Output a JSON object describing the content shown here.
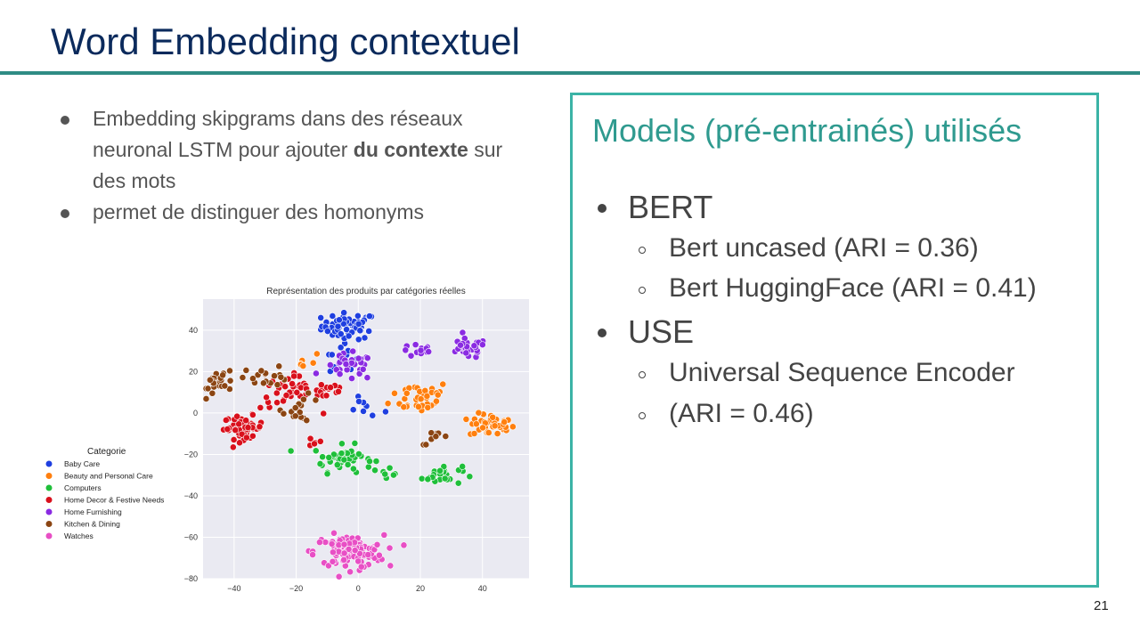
{
  "slide": {
    "title": "Word Embedding contextuel",
    "page_number": "21"
  },
  "left": {
    "bullets": [
      {
        "before": "Embedding skipgrams dans des réseaux neuronal LSTM pour ajouter ",
        "bold": "du contexte",
        "after": " sur des mots"
      },
      {
        "before": "permet de distinguer des homonyms",
        "bold": "",
        "after": ""
      }
    ]
  },
  "panel": {
    "title": "Models (pré-entrainés)  utilisés",
    "items": [
      {
        "label": "BERT",
        "subitems": [
          "Bert uncased  (ARI = 0.36)",
          "Bert HuggingFace (ARI = 0.41)"
        ]
      },
      {
        "label": "USE",
        "subitems": [
          "Universal Sequence Encoder",
          "(ARI = 0.46)"
        ]
      }
    ]
  },
  "chart_data": {
    "type": "scatter",
    "title": "Représentation des produits par catégories réelles",
    "xlabel": "",
    "ylabel": "",
    "xlim": [
      -50,
      55
    ],
    "ylim": [
      -80,
      55
    ],
    "xticks": [
      -40,
      -20,
      0,
      20,
      40
    ],
    "yticks": [
      40,
      20,
      0,
      -20,
      -40,
      -60,
      -80
    ],
    "grid": true,
    "legend": {
      "title": "Categorie",
      "placement": "left"
    },
    "series": [
      {
        "name": "Baby Care",
        "color": "#1f3fe0",
        "clusters": [
          {
            "cx": -3,
            "cy": 42,
            "sx": 5.5,
            "sy": 4,
            "n": 60
          },
          {
            "cx": -6,
            "cy": 25,
            "sx": 4,
            "sy": 5,
            "n": 12
          },
          {
            "cx": 2,
            "cy": 2,
            "sx": 4,
            "sy": 3,
            "n": 8
          }
        ]
      },
      {
        "name": "Beauty and Personal Care",
        "color": "#ff7f0e",
        "clusters": [
          {
            "cx": 43,
            "cy": -6,
            "sx": 4.5,
            "sy": 3.5,
            "n": 45
          },
          {
            "cx": 20,
            "cy": 8,
            "sx": 6,
            "sy": 5,
            "n": 40
          },
          {
            "cx": -18,
            "cy": 25,
            "sx": 4,
            "sy": 3,
            "n": 6
          }
        ]
      },
      {
        "name": "Computers",
        "color": "#1fbf3a",
        "clusters": [
          {
            "cx": -5,
            "cy": -22,
            "sx": 6,
            "sy": 4,
            "n": 45
          },
          {
            "cx": 27,
            "cy": -30,
            "sx": 4,
            "sy": 3,
            "n": 25
          },
          {
            "cx": 10,
            "cy": -28,
            "sx": 2,
            "sy": 2,
            "n": 6
          }
        ]
      },
      {
        "name": "Home Decor & Festive Needs",
        "color": "#d9101c",
        "clusters": [
          {
            "cx": -37,
            "cy": -7,
            "sx": 4,
            "sy": 3.5,
            "n": 60
          },
          {
            "cx": -22,
            "cy": 10,
            "sx": 6,
            "sy": 5,
            "n": 40
          },
          {
            "cx": -10,
            "cy": 12,
            "sx": 4,
            "sy": 4,
            "n": 15
          },
          {
            "cx": -14,
            "cy": -14,
            "sx": 2,
            "sy": 2,
            "n": 5
          }
        ]
      },
      {
        "name": "Home Furnishing",
        "color": "#8a2be2",
        "clusters": [
          {
            "cx": 35,
            "cy": 31,
            "sx": 4,
            "sy": 3,
            "n": 30
          },
          {
            "cx": 20,
            "cy": 30,
            "sx": 4,
            "sy": 2,
            "n": 12
          },
          {
            "cx": -3,
            "cy": 22,
            "sx": 5,
            "sy": 4,
            "n": 30
          }
        ]
      },
      {
        "name": "Kitchen & Dining",
        "color": "#8b4513",
        "clusters": [
          {
            "cx": -44,
            "cy": 15,
            "sx": 3.5,
            "sy": 4,
            "n": 25
          },
          {
            "cx": -30,
            "cy": 18,
            "sx": 5,
            "sy": 3,
            "n": 18
          },
          {
            "cx": -18,
            "cy": 2,
            "sx": 4,
            "sy": 4,
            "n": 15
          },
          {
            "cx": 25,
            "cy": -12,
            "sx": 3,
            "sy": 2,
            "n": 8
          }
        ]
      },
      {
        "name": "Watches",
        "color": "#e84fc5",
        "clusters": [
          {
            "cx": -3,
            "cy": -67,
            "sx": 7,
            "sy": 5,
            "n": 110
          }
        ]
      }
    ]
  }
}
